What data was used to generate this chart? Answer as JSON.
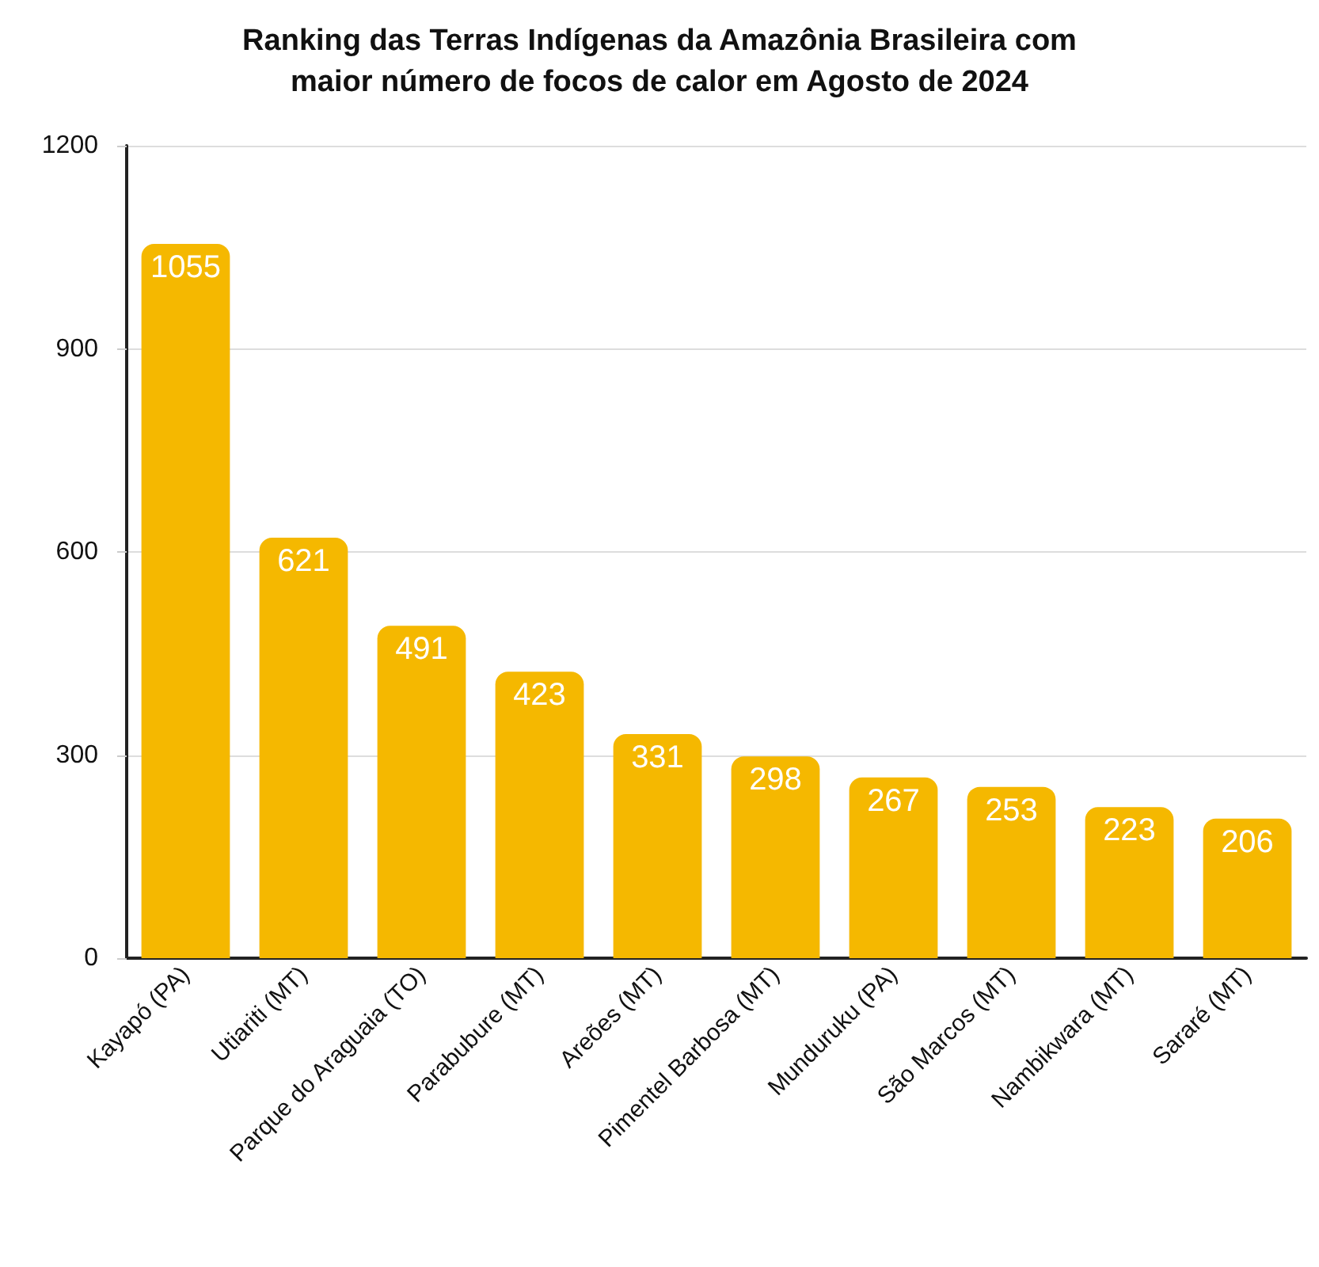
{
  "chart_data": {
    "type": "bar",
    "title": "Ranking das Terras Indígenas da Amazônia Brasileira com\nmaior número de focos de calor em Agosto de 2024",
    "categories": [
      "Kayapó (PA)",
      "Utiariti (MT)",
      "Parque do Araguaia (TO)",
      "Parabubure (MT)",
      "Areões (MT)",
      "Pimentel Barbosa (MT)",
      "Munduruku (PA)",
      "São Marcos (MT)",
      "Nambikwara (MT)",
      "Sararé (MT)"
    ],
    "values": [
      1055,
      621,
      491,
      423,
      331,
      298,
      267,
      253,
      223,
      206
    ],
    "color": "#f5b800",
    "ylim": [
      0,
      1200
    ],
    "yticks": [
      0,
      300,
      600,
      900,
      1200
    ],
    "grid": "y",
    "data_labels": true
  }
}
